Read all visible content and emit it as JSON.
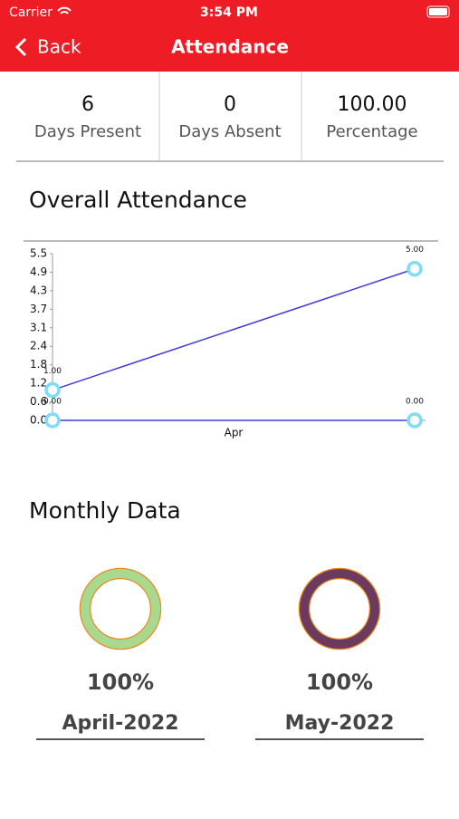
{
  "status_bar": {
    "carrier": "Carrier",
    "time": "3:54 PM"
  },
  "nav": {
    "back": "Back",
    "title": "Attendance"
  },
  "stats": [
    {
      "value": "6",
      "label": "Days Present"
    },
    {
      "value": "0",
      "label": "Days Absent"
    },
    {
      "value": "100.00",
      "label": "Percentage"
    }
  ],
  "chart_section": {
    "title": "Overall Attendance"
  },
  "chart_data": {
    "type": "line",
    "categories": [
      null,
      null
    ],
    "xlabel": "Apr",
    "series": [
      {
        "color": "#3b3bdb",
        "marker_color": "#7fdcf7",
        "values": [
          1,
          5
        ],
        "value_labels": [
          "1.00",
          "5.00"
        ]
      },
      {
        "color": "#3b3bdb",
        "marker_color": "#7fdcf7",
        "values": [
          0,
          0
        ],
        "value_labels": [
          "0.00",
          "0.00"
        ]
      }
    ],
    "ylim": [
      0,
      5.5
    ],
    "yticks": [
      {
        "value": 0,
        "label": "0.0"
      },
      {
        "value": 0.611,
        "label": "0.6"
      },
      {
        "value": 1.222,
        "label": "1.2"
      },
      {
        "value": 1.833,
        "label": "1.8"
      },
      {
        "value": 2.444,
        "label": "2.4"
      },
      {
        "value": 3.056,
        "label": "3.1"
      },
      {
        "value": 3.667,
        "label": "3.7"
      },
      {
        "value": 4.278,
        "label": "4.3"
      },
      {
        "value": 4.889,
        "label": "4.9"
      },
      5.5
    ],
    "grid": false
  },
  "monthly": {
    "title": "Monthly Data",
    "items": [
      {
        "value": 100,
        "value_label": "100%",
        "month": "April-2022",
        "color": "#a8d98f"
      },
      {
        "value": 100,
        "value_label": "100%",
        "month": "May-2022",
        "color": "#6b3a5e"
      }
    ]
  }
}
